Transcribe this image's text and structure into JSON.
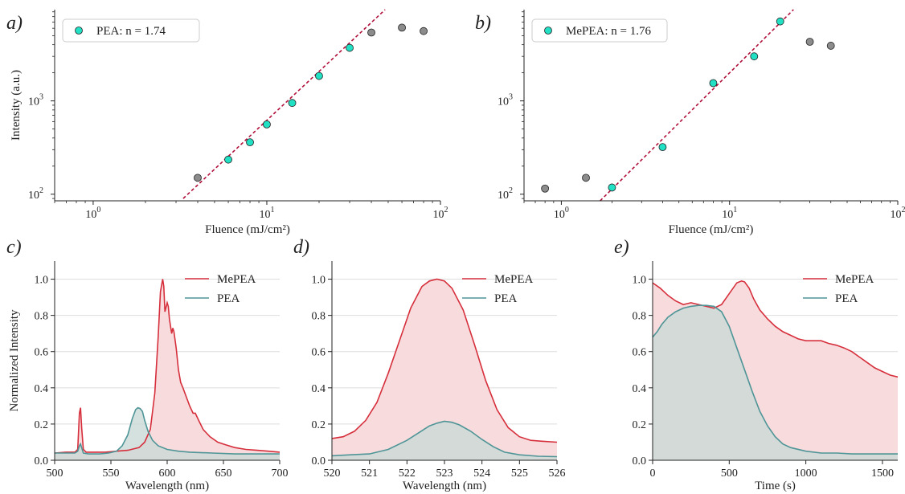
{
  "colors": {
    "mepea": "#d62f3c",
    "mepea_fill": "#f8dcdd",
    "pea": "#4f9597",
    "pea_fill": "#c9dad7",
    "fit_marker": "#22e0c4",
    "excluded_marker": "#8c8c8c",
    "fit_line": "#b0103a"
  },
  "chart_data": [
    {
      "type": "scatter",
      "panel": "a)",
      "xlabel": "Fluence (mJ/cm²)",
      "ylabel": "Intensity (a.u.)",
      "xscale": "log",
      "yscale": "log",
      "xlim": [
        0.6,
        100
      ],
      "ylim": [
        85,
        9500
      ],
      "xticks": [
        {
          "value": 1,
          "base": "10",
          "exp": "0"
        },
        {
          "value": 10,
          "base": "10",
          "exp": "1"
        },
        {
          "value": 100,
          "base": "10",
          "exp": "2"
        }
      ],
      "yticks": [
        {
          "value": 100,
          "base": "10",
          "exp": "2"
        },
        {
          "value": 1000,
          "base": "10",
          "exp": "3"
        }
      ],
      "legend": "PEA: n = 1.74",
      "legend_position": "top-left",
      "fit_exponent": 1.74,
      "fit_points": [
        [
          6,
          235
        ],
        [
          8,
          360
        ],
        [
          10,
          560
        ],
        [
          14,
          950
        ],
        [
          20,
          1850
        ],
        [
          30,
          3700
        ]
      ],
      "excluded_points": [
        [
          4,
          150
        ],
        [
          40,
          5400
        ],
        [
          60,
          6100
        ],
        [
          80,
          5600
        ]
      ],
      "fit_line": [
        [
          3.3,
          90
        ],
        [
          48,
          9500
        ]
      ]
    },
    {
      "type": "scatter",
      "panel": "b)",
      "xlabel": "Fluence (mJ/cm²)",
      "ylabel": "",
      "xscale": "log",
      "yscale": "log",
      "xlim": [
        0.6,
        100
      ],
      "ylim": [
        85,
        9500
      ],
      "xticks": [
        {
          "value": 1,
          "base": "10",
          "exp": "0"
        },
        {
          "value": 10,
          "base": "10",
          "exp": "1"
        },
        {
          "value": 100,
          "base": "10",
          "exp": "2"
        }
      ],
      "yticks": [
        {
          "value": 100,
          "base": "10",
          "exp": "2"
        },
        {
          "value": 1000,
          "base": "10",
          "exp": "3"
        }
      ],
      "legend": "MePEA: n = 1.76",
      "legend_position": "top-left",
      "fit_exponent": 1.76,
      "fit_points": [
        [
          2,
          118
        ],
        [
          4,
          320
        ],
        [
          8,
          1550
        ],
        [
          14,
          3000
        ],
        [
          20,
          7100
        ]
      ],
      "excluded_points": [
        [
          0.8,
          115
        ],
        [
          1.4,
          150
        ],
        [
          30,
          4300
        ],
        [
          40,
          3900
        ]
      ],
      "fit_line": [
        [
          1.7,
          85
        ],
        [
          24,
          9500
        ]
      ]
    },
    {
      "type": "area",
      "panel": "c)",
      "xlabel": "Wavelength (nm)",
      "ylabel": "Normalized Intensity",
      "xlim": [
        500,
        700
      ],
      "ylim": [
        0,
        1.1
      ],
      "xticks": [
        500,
        550,
        600,
        650,
        700
      ],
      "yticks": [
        "0.0",
        "0.2",
        "0.4",
        "0.6",
        "0.8",
        "1.0"
      ],
      "grid": "horizontal",
      "legend_position": "top-right",
      "series": [
        {
          "name": "MePEA",
          "x": [
            500,
            510,
            518,
            520.5,
            522,
            523,
            524,
            525.5,
            528,
            535,
            545,
            555,
            565,
            575,
            580,
            585,
            589,
            592,
            594,
            596,
            597,
            598,
            600,
            601,
            602,
            603,
            604,
            605,
            606,
            608,
            610,
            612,
            614,
            617,
            620,
            623,
            625,
            628,
            632,
            638,
            645,
            652,
            660,
            670,
            680,
            690,
            700
          ],
          "y": [
            0.04,
            0.045,
            0.045,
            0.06,
            0.26,
            0.29,
            0.18,
            0.06,
            0.045,
            0.045,
            0.045,
            0.05,
            0.055,
            0.07,
            0.1,
            0.17,
            0.37,
            0.68,
            0.93,
            1.0,
            0.96,
            0.82,
            0.87,
            0.85,
            0.78,
            0.74,
            0.7,
            0.73,
            0.71,
            0.62,
            0.5,
            0.43,
            0.4,
            0.35,
            0.3,
            0.26,
            0.26,
            0.22,
            0.17,
            0.13,
            0.1,
            0.085,
            0.07,
            0.06,
            0.055,
            0.05,
            0.045
          ]
        },
        {
          "name": "PEA",
          "x": [
            500,
            510,
            518,
            520.5,
            522,
            523,
            524,
            525.5,
            530,
            540,
            548,
            555,
            560,
            565,
            569,
            572,
            574,
            576,
            578,
            580,
            583,
            587,
            592,
            600,
            610,
            620,
            640,
            660,
            700
          ],
          "y": [
            0.04,
            0.04,
            0.04,
            0.05,
            0.08,
            0.09,
            0.07,
            0.04,
            0.035,
            0.035,
            0.04,
            0.05,
            0.08,
            0.14,
            0.23,
            0.28,
            0.29,
            0.285,
            0.27,
            0.22,
            0.16,
            0.11,
            0.08,
            0.06,
            0.05,
            0.045,
            0.04,
            0.035,
            0.035
          ]
        }
      ]
    },
    {
      "type": "area",
      "panel": "d)",
      "xlabel": "Wavelength (nm)",
      "ylabel": "",
      "xlim": [
        520,
        526
      ],
      "ylim": [
        0,
        1.1
      ],
      "xticks": [
        520,
        521,
        522,
        523,
        524,
        525,
        526
      ],
      "yticks": [
        "0.0",
        "0.2",
        "0.4",
        "0.6",
        "0.8",
        "1.0"
      ],
      "grid": "horizontal",
      "legend_position": "top-right",
      "series": [
        {
          "name": "MePEA",
          "x": [
            520,
            520.3,
            520.6,
            520.9,
            521.2,
            521.5,
            521.8,
            522.1,
            522.4,
            522.6,
            522.8,
            523.0,
            523.2,
            523.5,
            523.8,
            524.1,
            524.4,
            524.7,
            525.0,
            525.3,
            525.6,
            526
          ],
          "y": [
            0.12,
            0.13,
            0.16,
            0.22,
            0.32,
            0.48,
            0.66,
            0.84,
            0.96,
            0.99,
            1.0,
            0.99,
            0.95,
            0.83,
            0.64,
            0.44,
            0.28,
            0.18,
            0.13,
            0.11,
            0.105,
            0.1
          ]
        },
        {
          "name": "PEA",
          "x": [
            520,
            520.5,
            521,
            521.5,
            522,
            522.3,
            522.6,
            522.8,
            523.0,
            523.2,
            523.4,
            523.7,
            524.0,
            524.3,
            524.6,
            525.0,
            525.5,
            526
          ],
          "y": [
            0.025,
            0.03,
            0.035,
            0.06,
            0.11,
            0.15,
            0.19,
            0.205,
            0.215,
            0.21,
            0.195,
            0.16,
            0.115,
            0.075,
            0.045,
            0.03,
            0.022,
            0.02
          ]
        }
      ]
    },
    {
      "type": "area",
      "panel": "e)",
      "xlabel": "Time (s)",
      "ylabel": "",
      "xlim": [
        0,
        1600
      ],
      "ylim": [
        0,
        1.1
      ],
      "xticks": [
        0,
        500,
        1000,
        1500
      ],
      "yticks": [
        "0.0",
        "0.2",
        "0.4",
        "0.6",
        "0.8",
        "1.0"
      ],
      "grid": "horizontal",
      "legend_position": "top-right",
      "series": [
        {
          "name": "MePEA",
          "x": [
            0,
            50,
            100,
            150,
            200,
            250,
            300,
            350,
            400,
            450,
            500,
            550,
            580,
            600,
            630,
            660,
            700,
            750,
            800,
            850,
            900,
            950,
            1000,
            1050,
            1100,
            1150,
            1200,
            1250,
            1300,
            1350,
            1400,
            1450,
            1500,
            1550,
            1600
          ],
          "y": [
            0.98,
            0.95,
            0.91,
            0.88,
            0.86,
            0.87,
            0.86,
            0.85,
            0.84,
            0.86,
            0.92,
            0.98,
            0.99,
            0.985,
            0.95,
            0.89,
            0.83,
            0.78,
            0.74,
            0.71,
            0.69,
            0.67,
            0.66,
            0.66,
            0.66,
            0.645,
            0.635,
            0.62,
            0.6,
            0.57,
            0.54,
            0.51,
            0.49,
            0.47,
            0.46
          ]
        },
        {
          "name": "PEA",
          "x": [
            0,
            30,
            60,
            100,
            150,
            200,
            250,
            300,
            350,
            400,
            450,
            500,
            550,
            600,
            650,
            700,
            750,
            800,
            850,
            900,
            1000,
            1100,
            1200,
            1300,
            1400,
            1500,
            1600
          ],
          "y": [
            0.68,
            0.71,
            0.75,
            0.79,
            0.82,
            0.84,
            0.85,
            0.855,
            0.855,
            0.85,
            0.82,
            0.74,
            0.62,
            0.5,
            0.38,
            0.27,
            0.19,
            0.13,
            0.09,
            0.07,
            0.05,
            0.04,
            0.04,
            0.035,
            0.035,
            0.035,
            0.035
          ]
        }
      ]
    }
  ]
}
